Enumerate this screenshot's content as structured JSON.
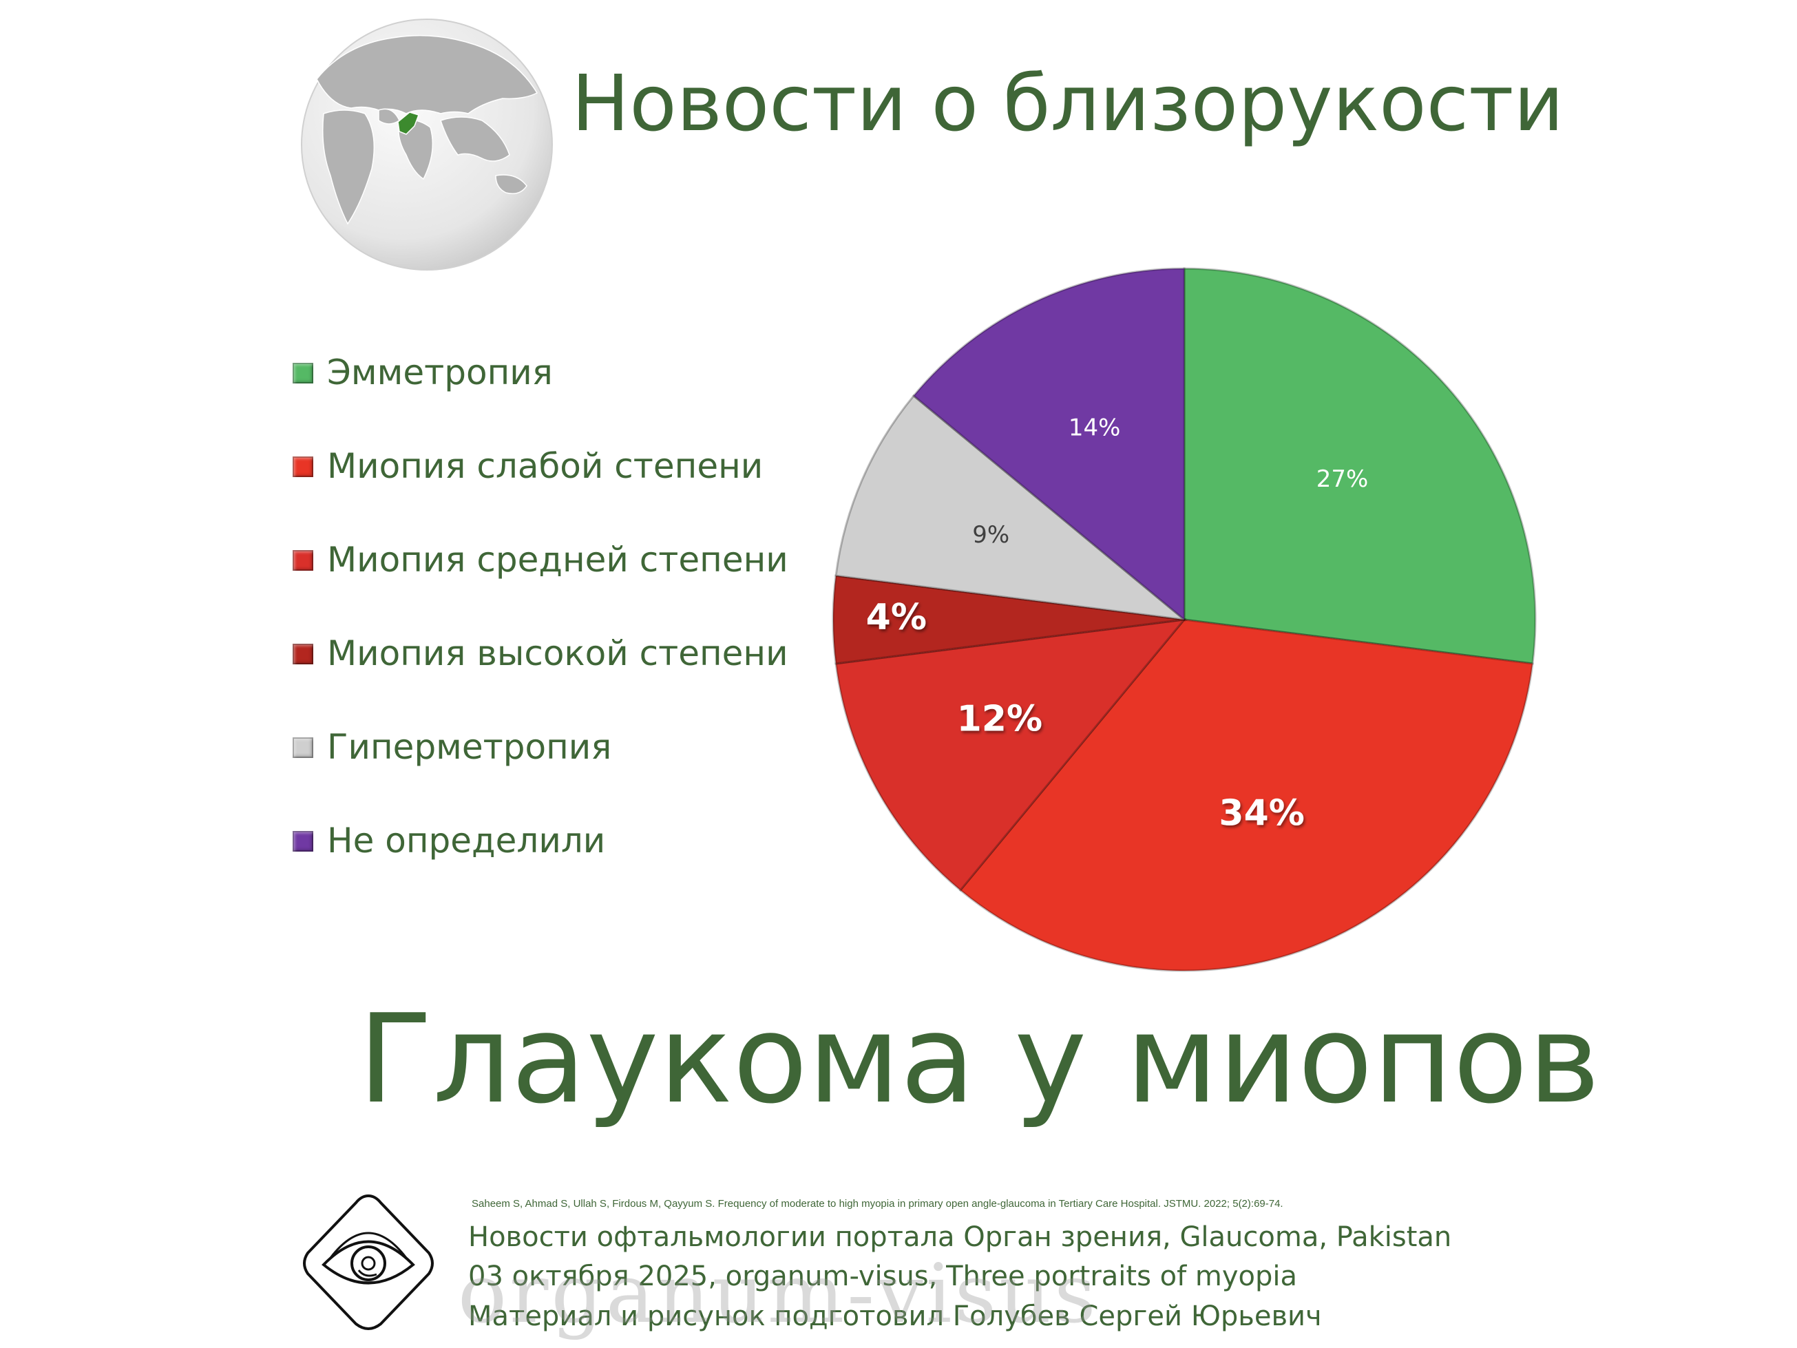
{
  "header": {
    "title": "Новости о близорукости"
  },
  "globe": {
    "icon": "globe-pakistan-icon",
    "ocean_color": "#e9e9e9",
    "land_color": "#b2b2b2",
    "highlight_color": "#3c8a2e"
  },
  "chart_data": {
    "type": "pie",
    "title": "",
    "start_angle_deg": 0,
    "direction": "clockwise",
    "slices": [
      {
        "name": "Эмметропия",
        "value": 27,
        "label": "27%",
        "color": "#55b965",
        "label_color": "#ffffff",
        "bold": false
      },
      {
        "name": "Миопия слабой степени",
        "value": 34,
        "label": "34%",
        "color": "#e83526",
        "label_color": "#ffffff",
        "bold": true
      },
      {
        "name": "Миопия средней степени",
        "value": 12,
        "label": "12%",
        "color": "#d9302a",
        "label_color": "#ffffff",
        "bold": true
      },
      {
        "name": "Миопия высокой степени",
        "value": 4,
        "label": "4%",
        "color": "#b3261f",
        "label_color": "#ffffff",
        "bold": true
      },
      {
        "name": "Гиперметропия",
        "value": 9,
        "label": "9%",
        "color": "#cfcfcf",
        "label_color": "#404040",
        "bold": false
      },
      {
        "name": "Не определили",
        "value": 14,
        "label": "14%",
        "color": "#7039a3",
        "label_color": "#ffffff",
        "bold": false
      }
    ],
    "legend_position": "left"
  },
  "subtitle": "Глаукома у миопов",
  "footer": {
    "logo_icon": "eye-in-diamond-logo-icon",
    "reference": "Saheem  S, Ahmad S, Ullah S, Firdous M, Qayyum S. Frequency of moderate  to  high  myopia  in  primary  open angle-glaucoma  in  Tertiary  Care  Hospital. JSTMU. 2022; 5(2):69-74.",
    "line1": "Новости офтальмологии портала Орган зрения, Glaucoma, Pakistan",
    "line2": "03 октября 2025, organum-visus, Three portraits of myopia",
    "line3": "Материал и рисунок подготовил Голубев Сергей Юрьевич",
    "watermark": "organum-visus"
  }
}
